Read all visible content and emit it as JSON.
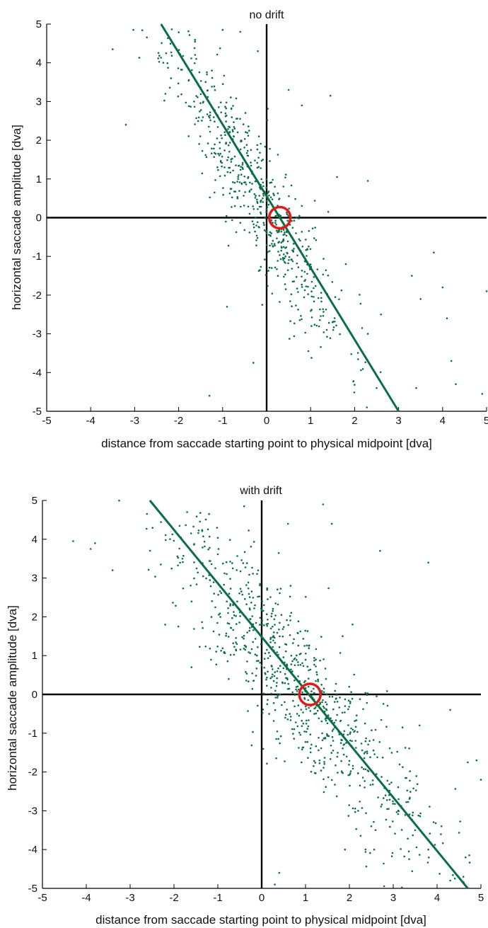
{
  "colors": {
    "points": "#0b6e45",
    "fit_line": "#0b6e45",
    "marker": "#e01b1b",
    "axes": "#000000"
  },
  "chart_data": [
    {
      "type": "scatter",
      "title": "no drift",
      "xlabel": "distance from saccade starting point to physical midpoint [dva]",
      "ylabel": "horizontal saccade amplitude [dva]",
      "xlim": [
        -5,
        5
      ],
      "ylim": [
        -5,
        5
      ],
      "xticks": [
        "-5",
        "-4",
        "-3",
        "-2",
        "-1",
        "0",
        "1",
        "2",
        "3",
        "4",
        "5"
      ],
      "yticks": [
        "-5",
        "-4",
        "-3",
        "-2",
        "-1",
        "0",
        "1",
        "2",
        "3",
        "4",
        "5"
      ],
      "grid": false,
      "fit_line": {
        "x": [
          -2.4,
          3.0
        ],
        "y": [
          5.0,
          -5.0
        ]
      },
      "circle_marker": {
        "x": 0.3,
        "y": 0.0
      },
      "cluster": {
        "n": 620,
        "center": [
          -0.2,
          0.6
        ],
        "spread": 1.0,
        "slope": -1.85,
        "noise_y": 0.85,
        "seed": 11
      },
      "points_sample": [
        [
          -3.5,
          4.35
        ],
        [
          -3.2,
          2.4
        ],
        [
          -2.3,
          3.2
        ],
        [
          -1.6,
          4.1
        ],
        [
          -1.0,
          4.85
        ],
        [
          -0.6,
          4.8
        ],
        [
          -0.2,
          4.3
        ],
        [
          0.5,
          3.3
        ],
        [
          0.8,
          2.9
        ],
        [
          1.45,
          3.15
        ],
        [
          1.6,
          1.05
        ],
        [
          2.3,
          0.95
        ],
        [
          1.4,
          0.15
        ],
        [
          -1.3,
          -4.6
        ],
        [
          -0.3,
          -3.75
        ],
        [
          -0.9,
          -2.3
        ],
        [
          -0.1,
          -2.25
        ],
        [
          1.5,
          -2.7
        ],
        [
          2.3,
          -3.0
        ],
        [
          3.4,
          -4.4
        ],
        [
          3.8,
          -0.9
        ],
        [
          4.0,
          -1.8
        ],
        [
          4.1,
          -2.6
        ],
        [
          4.2,
          -3.7
        ],
        [
          4.3,
          -4.3
        ],
        [
          4.9,
          -4.55
        ],
        [
          5.0,
          -1.9
        ],
        [
          2.5,
          -4.4
        ],
        [
          1.8,
          -1.2
        ],
        [
          2.6,
          -2.5
        ],
        [
          3.3,
          -1.5
        ],
        [
          3.5,
          -2.1
        ]
      ]
    },
    {
      "type": "scatter",
      "title": "with drift",
      "xlabel": "distance from saccade starting point to physical midpoint [dva]",
      "ylabel": "horizontal saccade amplitude [dva]",
      "xlim": [
        -5,
        5
      ],
      "ylim": [
        -5,
        5
      ],
      "xticks": [
        "-5",
        "-4",
        "-3",
        "-2",
        "-1",
        "0",
        "1",
        "2",
        "3",
        "4",
        "5"
      ],
      "yticks": [
        "-5",
        "-4",
        "-3",
        "-2",
        "-1",
        "0",
        "1",
        "2",
        "3",
        "4",
        "5"
      ],
      "grid": false,
      "fit_line": {
        "x": [
          -2.55,
          4.7
        ],
        "y": [
          5.0,
          -5.0
        ]
      },
      "circle_marker": {
        "x": 1.1,
        "y": 0.0
      },
      "cluster": {
        "n": 860,
        "center": [
          0.8,
          0.3
        ],
        "spread": 1.5,
        "slope": -1.35,
        "noise_y": 1.0,
        "seed": 29
      },
      "points_sample": [
        [
          -4.3,
          3.95
        ],
        [
          -3.9,
          3.75
        ],
        [
          -3.8,
          3.9
        ],
        [
          -3.4,
          3.2
        ],
        [
          -2.3,
          3.35
        ],
        [
          -2.2,
          1.8
        ],
        [
          -1.9,
          1.75
        ],
        [
          -1.7,
          4.7
        ],
        [
          -1.6,
          0.7
        ],
        [
          -1.2,
          4.65
        ],
        [
          -0.4,
          4.85
        ],
        [
          0.6,
          4.4
        ],
        [
          1.4,
          4.9
        ],
        [
          1.6,
          4.4
        ],
        [
          2.7,
          3.7
        ],
        [
          3.8,
          3.4
        ],
        [
          0.4,
          -4.6
        ],
        [
          1.9,
          -4.0
        ],
        [
          2.5,
          -3.4
        ],
        [
          3.5,
          -3.5
        ],
        [
          3.8,
          -4.0
        ],
        [
          4.1,
          -3.4
        ],
        [
          4.3,
          -4.8
        ],
        [
          4.6,
          -4.7
        ],
        [
          4.65,
          -4.2
        ],
        [
          4.9,
          -1.7
        ],
        [
          5.0,
          -2.2
        ],
        [
          4.7,
          -1.75
        ],
        [
          4.3,
          -0.4
        ],
        [
          3.6,
          -0.8
        ],
        [
          2.9,
          -2.5
        ],
        [
          2.2,
          -3.0
        ],
        [
          0.3,
          -4.9
        ]
      ]
    }
  ]
}
